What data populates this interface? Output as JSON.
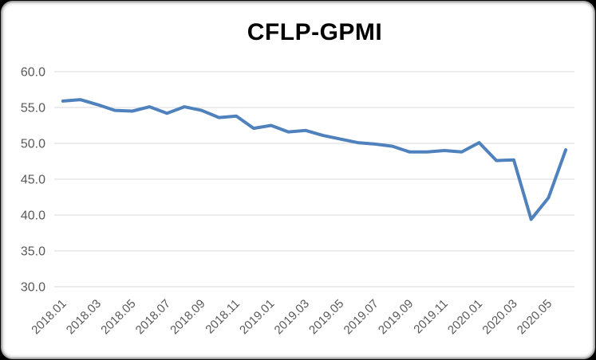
{
  "window": {
    "title": "CFLP-GPMI"
  },
  "chart_data": {
    "type": "line",
    "title": "CFLP-GPMI",
    "xlabel": "",
    "ylabel": "",
    "x": [
      "2018.01",
      "2018.02",
      "2018.03",
      "2018.04",
      "2018.05",
      "2018.06",
      "2018.07",
      "2018.08",
      "2018.09",
      "2018.10",
      "2018.11",
      "2018.12",
      "2019.01",
      "2019.02",
      "2019.03",
      "2019.04",
      "2019.05",
      "2019.06",
      "2019.07",
      "2019.08",
      "2019.09",
      "2019.10",
      "2019.11",
      "2019.12",
      "2020.01",
      "2020.02",
      "2020.03",
      "2020.04",
      "2020.05",
      "2020.06"
    ],
    "series": [
      {
        "name": "CFLP-GPMI",
        "values": [
          55.9,
          56.1,
          55.4,
          54.6,
          54.5,
          55.1,
          54.2,
          55.1,
          54.6,
          53.6,
          53.8,
          52.1,
          52.5,
          51.6,
          51.8,
          51.1,
          50.6,
          50.1,
          49.9,
          49.6,
          48.8,
          48.8,
          49.0,
          48.8,
          50.1,
          47.6,
          47.7,
          39.4,
          42.4,
          49.1
        ]
      }
    ],
    "x_tick_labels": [
      "2018.01",
      "2018.03",
      "2018.05",
      "2018.07",
      "2018.09",
      "2018.11",
      "2019.01",
      "2019.03",
      "2019.05",
      "2019.07",
      "2019.09",
      "2019.11",
      "2020.01",
      "2020.03",
      "2020.05"
    ],
    "x_tick_every": 2,
    "y_ticks": [
      "60.0",
      "55.0",
      "50.0",
      "45.0",
      "40.0",
      "35.0",
      "30.0"
    ],
    "ylim": [
      30,
      60
    ],
    "grid": "horizontal-only",
    "legend": "none",
    "colors": {
      "line": "#4F81BD",
      "gridline": "#D9D9D9",
      "tick_text": "#595959",
      "title_text": "#000000",
      "card_background": "#FFFFFF",
      "card_border": "#A8A8A8",
      "outer_background": "#000000"
    }
  }
}
